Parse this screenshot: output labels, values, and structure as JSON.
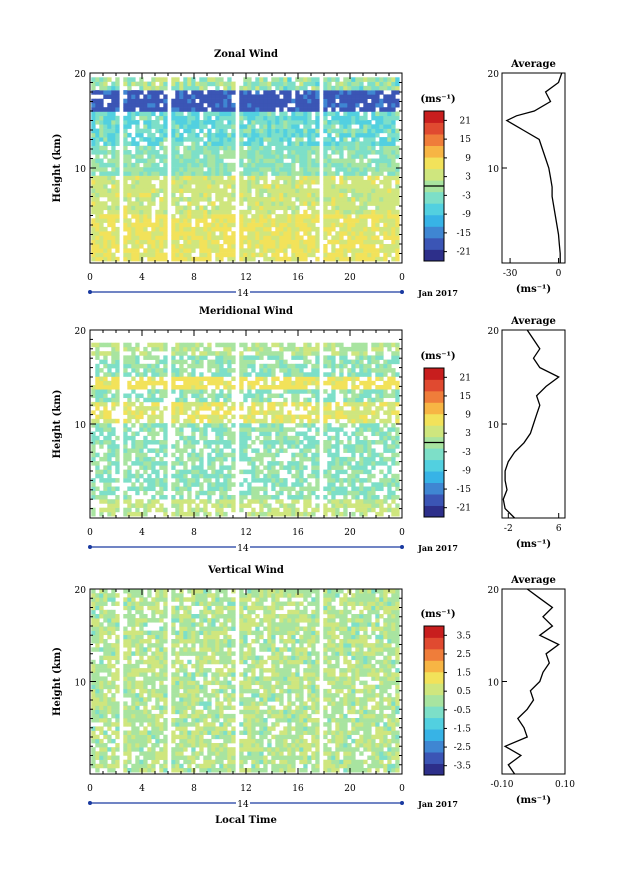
{
  "figure": {
    "date_label": "Jan 2017",
    "day_label": "14",
    "xlabel": "Local Time",
    "xticks": [
      "0",
      "4",
      "8",
      "12",
      "16",
      "20",
      "0"
    ],
    "x_range_hours": [
      0,
      24
    ],
    "units_label": "(ms⁻¹)"
  },
  "chart_data": [
    {
      "type": "heatmap",
      "title": "Zonal Wind",
      "ylabel": "Height (km)",
      "ylim": [
        0,
        20
      ],
      "yticks": [
        "10",
        "20"
      ],
      "colorbar": {
        "ticks": [
          "21",
          "15",
          "9",
          "3",
          "-3",
          "-9",
          "-15",
          "-21"
        ],
        "range": [
          -24,
          24
        ]
      },
      "profile": {
        "title": "Average",
        "xlabel": "(ms⁻¹)",
        "xticks": [
          "-30",
          "0"
        ],
        "xlim": [
          -35,
          4
        ],
        "heights": [
          0,
          1,
          2,
          3,
          4,
          5,
          6,
          7,
          8,
          9,
          10,
          11,
          12,
          13,
          14,
          15,
          15.5,
          16,
          17,
          18,
          19,
          20
        ],
        "values": [
          1,
          1,
          0.5,
          0,
          -1,
          -2,
          -3,
          -4,
          -4,
          -5,
          -6,
          -8,
          -10,
          -12,
          -22,
          -32,
          -26,
          -15,
          -5,
          -8,
          0,
          2
        ]
      }
    },
    {
      "type": "heatmap",
      "title": "Meridional Wind",
      "ylabel": "Height (km)",
      "ylim": [
        0,
        20
      ],
      "yticks": [
        "10",
        "20"
      ],
      "colorbar": {
        "ticks": [
          "21",
          "15",
          "9",
          "3",
          "-3",
          "-9",
          "-15",
          "-21"
        ],
        "range": [
          -24,
          24
        ]
      },
      "profile": {
        "title": "Average",
        "xlabel": "(ms⁻¹)",
        "xticks": [
          "-2",
          "6"
        ],
        "xlim": [
          -3,
          7
        ],
        "heights": [
          0,
          1,
          2,
          3,
          4,
          5,
          6,
          7,
          8,
          9,
          10,
          11,
          12,
          13,
          14,
          15,
          16,
          17,
          18,
          19,
          20
        ],
        "values": [
          -1,
          -2.5,
          -2.8,
          -2.2,
          -2.5,
          -2.5,
          -2.0,
          -1.0,
          0.5,
          1.5,
          2.0,
          2.5,
          3.0,
          2.5,
          4.0,
          6.0,
          3.0,
          2.0,
          3.0,
          2.0,
          1.0
        ]
      }
    },
    {
      "type": "heatmap",
      "title": "Vertical Wind",
      "ylabel": "Height (km)",
      "ylim": [
        0,
        20
      ],
      "yticks": [
        "10",
        "20"
      ],
      "colorbar": {
        "ticks": [
          "3.5",
          "2.5",
          "1.5",
          "0.5",
          "-0.5",
          "-1.5",
          "-2.5",
          "-3.5"
        ],
        "range": [
          -4,
          4
        ]
      },
      "profile": {
        "title": "Average",
        "xlabel": "(ms⁻¹)",
        "xticks": [
          "-0.10",
          "0.10"
        ],
        "xlim": [
          -0.1,
          0.1
        ],
        "heights": [
          0,
          1,
          2,
          3,
          4,
          5,
          6,
          7,
          8,
          9,
          10,
          11,
          12,
          13,
          14,
          15,
          16,
          17,
          18,
          19,
          20
        ],
        "values": [
          -0.06,
          -0.08,
          -0.04,
          -0.09,
          -0.02,
          -0.03,
          -0.05,
          -0.02,
          0.0,
          -0.01,
          0.02,
          0.03,
          0.05,
          0.04,
          0.08,
          0.02,
          0.06,
          0.03,
          0.06,
          0.02,
          -0.02
        ]
      }
    }
  ]
}
